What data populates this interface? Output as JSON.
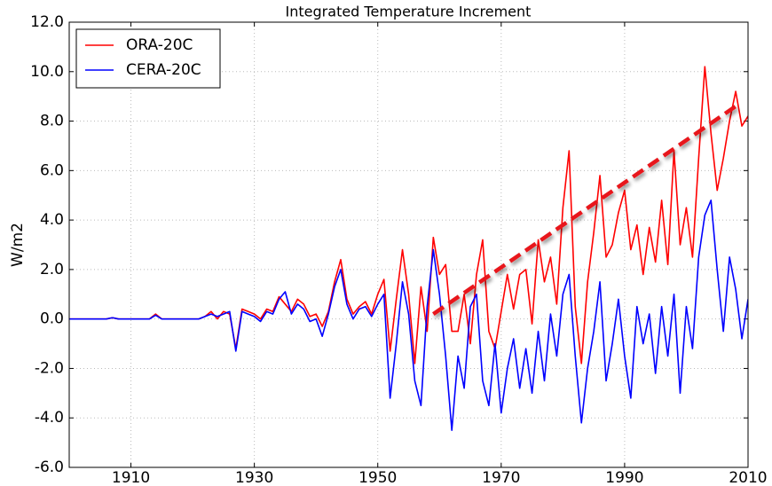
{
  "chart_data": {
    "type": "line",
    "title": "Integrated Temperature Increment",
    "y_label": "W/m2",
    "x": [
      1900,
      1901,
      1902,
      1903,
      1904,
      1905,
      1906,
      1907,
      1908,
      1909,
      1910,
      1911,
      1912,
      1913,
      1914,
      1915,
      1916,
      1917,
      1918,
      1919,
      1920,
      1921,
      1922,
      1923,
      1924,
      1925,
      1926,
      1927,
      1928,
      1929,
      1930,
      1931,
      1932,
      1933,
      1934,
      1935,
      1936,
      1937,
      1938,
      1939,
      1940,
      1941,
      1942,
      1943,
      1944,
      1945,
      1946,
      1947,
      1948,
      1949,
      1950,
      1951,
      1952,
      1953,
      1954,
      1955,
      1956,
      1957,
      1958,
      1959,
      1960,
      1961,
      1962,
      1963,
      1964,
      1965,
      1966,
      1967,
      1968,
      1969,
      1970,
      1971,
      1972,
      1973,
      1974,
      1975,
      1976,
      1977,
      1978,
      1979,
      1980,
      1981,
      1982,
      1983,
      1984,
      1985,
      1986,
      1987,
      1988,
      1989,
      1990,
      1991,
      1992,
      1993,
      1994,
      1995,
      1996,
      1997,
      1998,
      1999,
      2000,
      2001,
      2002,
      2003,
      2004,
      2005,
      2006,
      2007,
      2008,
      2009,
      2010
    ],
    "series": [
      {
        "name": "ORA-20C",
        "color": "#ff0000",
        "values": [
          0,
          0,
          0,
          0,
          0,
          0,
          0,
          0.05,
          0,
          0,
          0,
          0,
          0,
          0,
          0.2,
          0,
          0,
          0,
          0,
          0,
          0,
          0,
          0.1,
          0.3,
          0.0,
          0.3,
          0.2,
          -1.2,
          0.4,
          0.3,
          0.2,
          0.0,
          0.4,
          0.3,
          0.9,
          0.6,
          0.3,
          0.8,
          0.6,
          0.1,
          0.2,
          -0.3,
          0.3,
          1.5,
          2.4,
          0.8,
          0.2,
          0.5,
          0.7,
          0.2,
          1.0,
          1.6,
          -1.3,
          0.8,
          2.8,
          1.0,
          -1.8,
          1.3,
          -0.5,
          3.3,
          1.8,
          2.2,
          -0.5,
          -0.5,
          1.0,
          -1.0,
          1.8,
          3.2,
          -0.5,
          -1.2,
          0.3,
          1.8,
          0.4,
          1.8,
          2.0,
          -0.2,
          3.2,
          1.5,
          2.5,
          0.6,
          4.5,
          6.8,
          0.5,
          -1.8,
          1.5,
          3.5,
          5.8,
          2.5,
          3.0,
          4.3,
          5.2,
          2.8,
          3.8,
          1.8,
          3.7,
          2.3,
          4.8,
          2.2,
          6.8,
          3.0,
          4.5,
          2.5,
          6.5,
          10.2,
          7.5,
          5.2,
          6.5,
          8.0,
          9.2,
          7.8,
          8.2
        ]
      },
      {
        "name": "CERA-20C",
        "color": "#0000ff",
        "values": [
          0,
          0,
          0,
          0,
          0,
          0,
          0,
          0.05,
          0,
          0,
          0,
          0,
          0,
          0,
          0.15,
          0,
          0,
          0,
          0,
          0,
          0,
          0,
          0.1,
          0.2,
          0.1,
          0.2,
          0.3,
          -1.3,
          0.3,
          0.2,
          0.1,
          -0.1,
          0.3,
          0.2,
          0.8,
          1.1,
          0.2,
          0.6,
          0.4,
          -0.1,
          0.0,
          -0.7,
          0.2,
          1.3,
          2.0,
          0.6,
          0.0,
          0.4,
          0.5,
          0.1,
          0.6,
          1.0,
          -3.2,
          -1.0,
          1.5,
          0.2,
          -2.5,
          -3.5,
          0.5,
          2.8,
          1.0,
          -1.5,
          -4.5,
          -1.5,
          -2.8,
          0.5,
          1.0,
          -2.5,
          -3.5,
          -1.0,
          -3.8,
          -2.0,
          -0.8,
          -2.8,
          -1.2,
          -3.0,
          -0.5,
          -2.5,
          0.2,
          -1.5,
          1.0,
          1.8,
          -1.5,
          -4.2,
          -2.0,
          -0.5,
          1.5,
          -2.5,
          -1.0,
          0.8,
          -1.5,
          -3.2,
          0.5,
          -1.0,
          0.2,
          -2.2,
          0.5,
          -1.5,
          1.0,
          -3.0,
          0.5,
          -1.2,
          2.5,
          4.2,
          4.8,
          2.0,
          -0.5,
          2.5,
          1.2,
          -0.8,
          0.8
        ]
      }
    ],
    "trend": {
      "x": [
        1959,
        2008
      ],
      "values": [
        0.2,
        8.6
      ],
      "color": "#e8191a"
    },
    "xlim": [
      1900,
      2010
    ],
    "ylim": [
      -6,
      12
    ],
    "xticks": [
      1910,
      1930,
      1950,
      1970,
      1990,
      2010
    ],
    "yticks": [
      {
        "value": -6,
        "label": "-6.0"
      },
      {
        "value": -4,
        "label": "-4.0"
      },
      {
        "value": -2,
        "label": "-2.0"
      },
      {
        "value": 0,
        "label": "0.0"
      },
      {
        "value": 2,
        "label": "2.0"
      },
      {
        "value": 4,
        "label": "4.0"
      },
      {
        "value": 6,
        "label": "6.0"
      },
      {
        "value": 8,
        "label": "8.0"
      },
      {
        "value": 10,
        "label": "10.0"
      },
      {
        "value": 12,
        "label": "12.0"
      }
    ],
    "grid": true,
    "legend": "upper-left"
  }
}
